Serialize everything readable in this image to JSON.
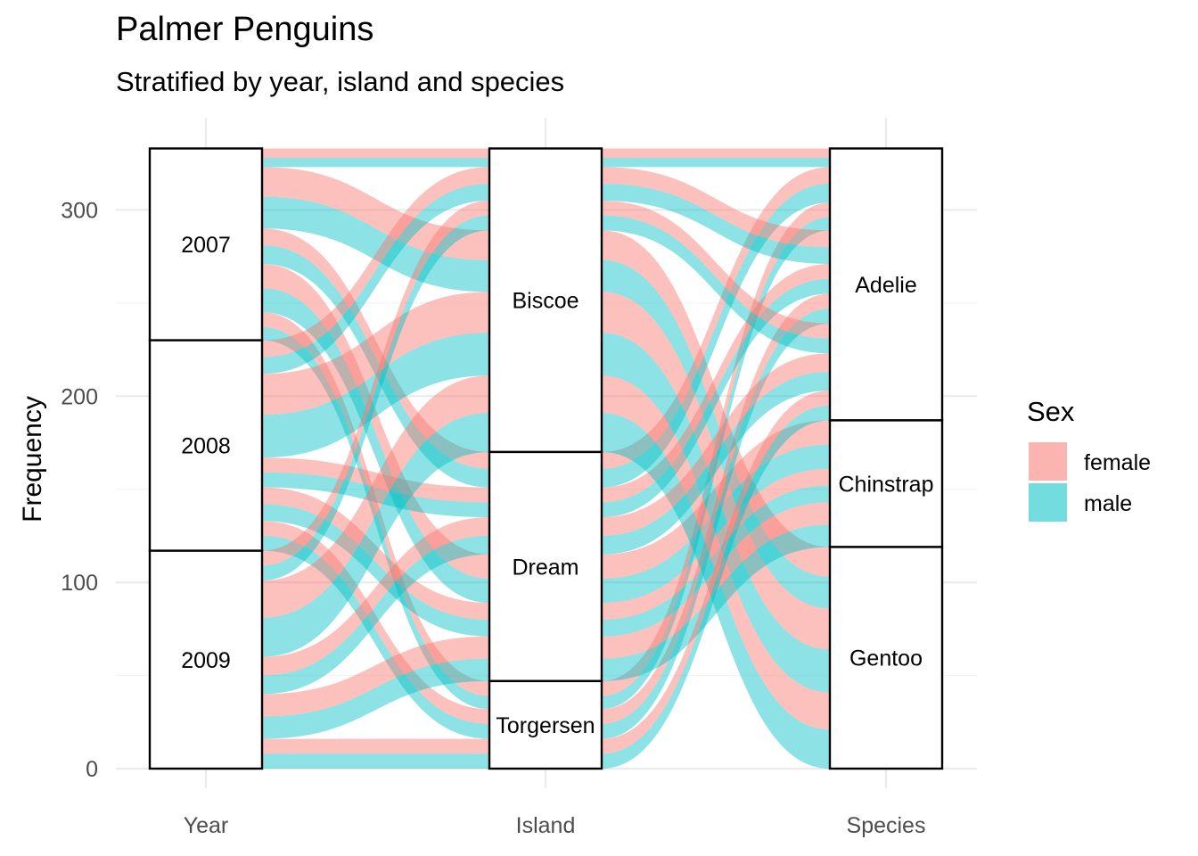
{
  "title": "Palmer Penguins",
  "subtitle": "Stratified by year, island and species",
  "chart_data": {
    "type": "alluvial",
    "ylabel": "Frequency",
    "xlabel": "",
    "ylim": [
      0,
      333
    ],
    "y_ticks": [
      0,
      100,
      200,
      300
    ],
    "axes": [
      "Year",
      "Island",
      "Species"
    ],
    "fill_variable": "Sex",
    "legend": {
      "title": "Sex",
      "position": "right",
      "entries": [
        {
          "label": "female",
          "color": "#F8766D"
        },
        {
          "label": "male",
          "color": "#00BFC4"
        }
      ]
    },
    "strata": {
      "Year": [
        {
          "label": "2007",
          "count": 103
        },
        {
          "label": "2008",
          "count": 113
        },
        {
          "label": "2009",
          "count": 117
        }
      ],
      "Island": [
        {
          "label": "Biscoe",
          "count": 163
        },
        {
          "label": "Dream",
          "count": 123
        },
        {
          "label": "Torgersen",
          "count": 47
        }
      ],
      "Species": [
        {
          "label": "Adelie",
          "count": 146
        },
        {
          "label": "Chinstrap",
          "count": 68
        },
        {
          "label": "Gentoo",
          "count": 119
        }
      ]
    },
    "flows": [
      {
        "year": "2007",
        "island": "Biscoe",
        "species": "Adelie",
        "sex": "female",
        "count": 5
      },
      {
        "year": "2007",
        "island": "Biscoe",
        "species": "Adelie",
        "sex": "male",
        "count": 5
      },
      {
        "year": "2007",
        "island": "Biscoe",
        "species": "Gentoo",
        "sex": "female",
        "count": 16
      },
      {
        "year": "2007",
        "island": "Biscoe",
        "species": "Gentoo",
        "sex": "male",
        "count": 17
      },
      {
        "year": "2007",
        "island": "Dream",
        "species": "Adelie",
        "sex": "female",
        "count": 9
      },
      {
        "year": "2007",
        "island": "Dream",
        "species": "Adelie",
        "sex": "male",
        "count": 10
      },
      {
        "year": "2007",
        "island": "Dream",
        "species": "Chinstrap",
        "sex": "female",
        "count": 13
      },
      {
        "year": "2007",
        "island": "Dream",
        "species": "Chinstrap",
        "sex": "male",
        "count": 13
      },
      {
        "year": "2007",
        "island": "Torgersen",
        "species": "Adelie",
        "sex": "female",
        "count": 8
      },
      {
        "year": "2007",
        "island": "Torgersen",
        "species": "Adelie",
        "sex": "male",
        "count": 7
      },
      {
        "year": "2008",
        "island": "Biscoe",
        "species": "Adelie",
        "sex": "female",
        "count": 9
      },
      {
        "year": "2008",
        "island": "Biscoe",
        "species": "Adelie",
        "sex": "male",
        "count": 9
      },
      {
        "year": "2008",
        "island": "Biscoe",
        "species": "Gentoo",
        "sex": "female",
        "count": 22
      },
      {
        "year": "2008",
        "island": "Biscoe",
        "species": "Gentoo",
        "sex": "male",
        "count": 23
      },
      {
        "year": "2008",
        "island": "Dream",
        "species": "Adelie",
        "sex": "female",
        "count": 8
      },
      {
        "year": "2008",
        "island": "Dream",
        "species": "Adelie",
        "sex": "male",
        "count": 8
      },
      {
        "year": "2008",
        "island": "Dream",
        "species": "Chinstrap",
        "sex": "female",
        "count": 9
      },
      {
        "year": "2008",
        "island": "Dream",
        "species": "Chinstrap",
        "sex": "male",
        "count": 9
      },
      {
        "year": "2008",
        "island": "Torgersen",
        "species": "Adelie",
        "sex": "female",
        "count": 8
      },
      {
        "year": "2008",
        "island": "Torgersen",
        "species": "Adelie",
        "sex": "male",
        "count": 8
      },
      {
        "year": "2009",
        "island": "Biscoe",
        "species": "Adelie",
        "sex": "female",
        "count": 8
      },
      {
        "year": "2009",
        "island": "Biscoe",
        "species": "Adelie",
        "sex": "male",
        "count": 8
      },
      {
        "year": "2009",
        "island": "Biscoe",
        "species": "Gentoo",
        "sex": "female",
        "count": 20
      },
      {
        "year": "2009",
        "island": "Biscoe",
        "species": "Gentoo",
        "sex": "male",
        "count": 21
      },
      {
        "year": "2009",
        "island": "Dream",
        "species": "Adelie",
        "sex": "female",
        "count": 10
      },
      {
        "year": "2009",
        "island": "Dream",
        "species": "Adelie",
        "sex": "male",
        "count": 10
      },
      {
        "year": "2009",
        "island": "Dream",
        "species": "Chinstrap",
        "sex": "female",
        "count": 12
      },
      {
        "year": "2009",
        "island": "Dream",
        "species": "Chinstrap",
        "sex": "male",
        "count": 12
      },
      {
        "year": "2009",
        "island": "Torgersen",
        "species": "Adelie",
        "sex": "female",
        "count": 8
      },
      {
        "year": "2009",
        "island": "Torgersen",
        "species": "Adelie",
        "sex": "male",
        "count": 8
      }
    ]
  }
}
